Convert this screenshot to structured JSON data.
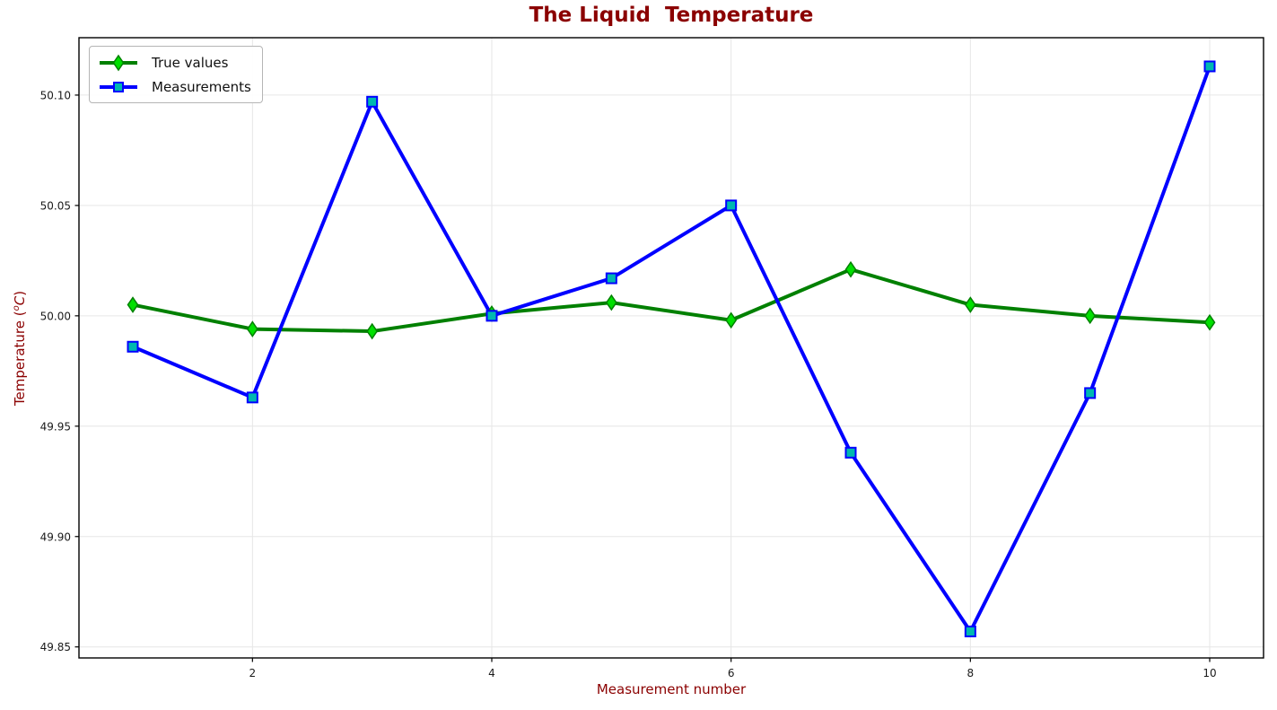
{
  "title": "The Liquid  Temperature",
  "labels": {
    "ylabel_prefix": "Temperature (",
    "ylabel_sup": "o",
    "ylabel_unit": "C",
    "ylabel_suffix": ")"
  },
  "colors": {
    "title": "#8b0000",
    "axis_label": "#8b0000",
    "tick_label": "#1a1a1a",
    "grid": "#e6e6e6",
    "spine": "#000000"
  },
  "chart_data": {
    "type": "line",
    "title": "The Liquid  Temperature",
    "xlabel": "Measurement number",
    "ylabel": "Temperature (oC)",
    "x": [
      1,
      2,
      3,
      4,
      5,
      6,
      7,
      8,
      9,
      10
    ],
    "series": [
      {
        "name": "True values",
        "marker": "diamond",
        "color": "#008000",
        "marker_face": "#00e000",
        "values": [
          50.005,
          49.994,
          49.993,
          50.001,
          50.006,
          49.998,
          50.021,
          50.005,
          50.0,
          49.997
        ]
      },
      {
        "name": "Measurements",
        "marker": "square",
        "color": "#0000ff",
        "marker_face": "#00b8b0",
        "values": [
          49.986,
          49.963,
          50.097,
          50.0,
          50.017,
          50.05,
          49.938,
          49.857,
          49.965,
          50.113
        ]
      }
    ],
    "xlim": [
      0.55,
      10.45
    ],
    "ylim": [
      49.845,
      50.126
    ],
    "xticks": [
      2,
      4,
      6,
      8,
      10
    ],
    "yticks": [
      49.85,
      49.9,
      49.95,
      50.0,
      50.05,
      50.1
    ],
    "grid": true,
    "legend_position": "upper left"
  }
}
